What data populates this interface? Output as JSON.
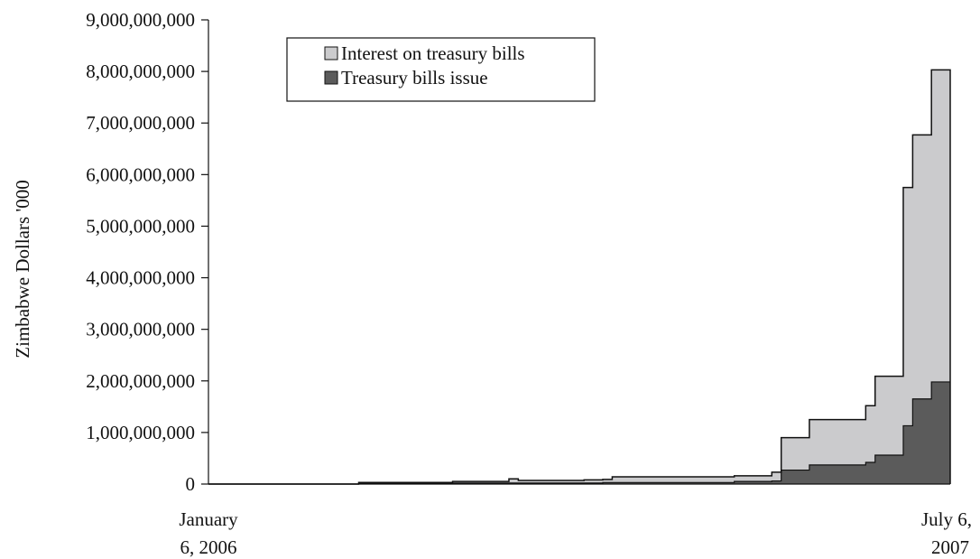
{
  "chart_data": {
    "type": "area",
    "stacked": true,
    "title": "",
    "ylabel": "Zimbabwe Dollars '000",
    "xlabel": "",
    "ylim": [
      0,
      9000000000
    ],
    "yticks": [
      0,
      1000000000,
      2000000000,
      3000000000,
      4000000000,
      5000000000,
      6000000000,
      7000000000,
      8000000000,
      9000000000
    ],
    "ytick_labels": [
      "0",
      "1,000,000,000",
      "2,000,000,000",
      "3,000,000,000",
      "4,000,000,000",
      "5,000,000,000",
      "6,000,000,000",
      "7,000,000,000",
      "8,000,000,000",
      "9,000,000,000"
    ],
    "x_labels": {
      "start": [
        "January",
        "6, 2006"
      ],
      "end": [
        "July 6,",
        "2007"
      ]
    },
    "x_periods": 79,
    "legend": {
      "position": "top-left",
      "entries": [
        {
          "name": "Interest on treasury bills",
          "color": "#cbcbcd"
        },
        {
          "name": "Treasury bills issue",
          "color": "#5b5b5b"
        }
      ]
    },
    "series": [
      {
        "name": "Treasury bills issue",
        "color": "#5b5b5b",
        "values": [
          0,
          0,
          0,
          0,
          0,
          0,
          0,
          0,
          0,
          0,
          0,
          0,
          0,
          0,
          0,
          0,
          10000000,
          10000000,
          10000000,
          10000000,
          10000000,
          10000000,
          10000000,
          10000000,
          10000000,
          10000000,
          20000000,
          20000000,
          20000000,
          20000000,
          20000000,
          20000000,
          20000000,
          20000000,
          20000000,
          20000000,
          20000000,
          20000000,
          20000000,
          20000000,
          20000000,
          20000000,
          30000000,
          30000000,
          30000000,
          30000000,
          30000000,
          30000000,
          30000000,
          30000000,
          30000000,
          30000000,
          30000000,
          30000000,
          30000000,
          30000000,
          50000000,
          50000000,
          50000000,
          50000000,
          60000000,
          270000000,
          270000000,
          270000000,
          370000000,
          370000000,
          370000000,
          370000000,
          370000000,
          370000000,
          420000000,
          560000000,
          560000000,
          560000000,
          1130000000,
          1650000000,
          1650000000,
          1980000000,
          1980000000
        ]
      },
      {
        "name": "Interest on treasury bills",
        "color": "#cbcbcd",
        "values": [
          0,
          0,
          0,
          0,
          0,
          0,
          0,
          0,
          0,
          0,
          0,
          0,
          0,
          0,
          0,
          0,
          20000000,
          20000000,
          20000000,
          20000000,
          20000000,
          20000000,
          20000000,
          20000000,
          20000000,
          20000000,
          30000000,
          30000000,
          30000000,
          30000000,
          30000000,
          30000000,
          80000000,
          50000000,
          50000000,
          50000000,
          50000000,
          50000000,
          50000000,
          50000000,
          60000000,
          60000000,
          60000000,
          110000000,
          110000000,
          110000000,
          110000000,
          110000000,
          110000000,
          110000000,
          110000000,
          110000000,
          110000000,
          110000000,
          110000000,
          110000000,
          110000000,
          110000000,
          110000000,
          110000000,
          170000000,
          630000000,
          630000000,
          630000000,
          880000000,
          880000000,
          880000000,
          880000000,
          880000000,
          880000000,
          1100000000,
          1530000000,
          1530000000,
          1530000000,
          4620000000,
          5120000000,
          5120000000,
          6050000000,
          6050000000
        ]
      }
    ]
  }
}
